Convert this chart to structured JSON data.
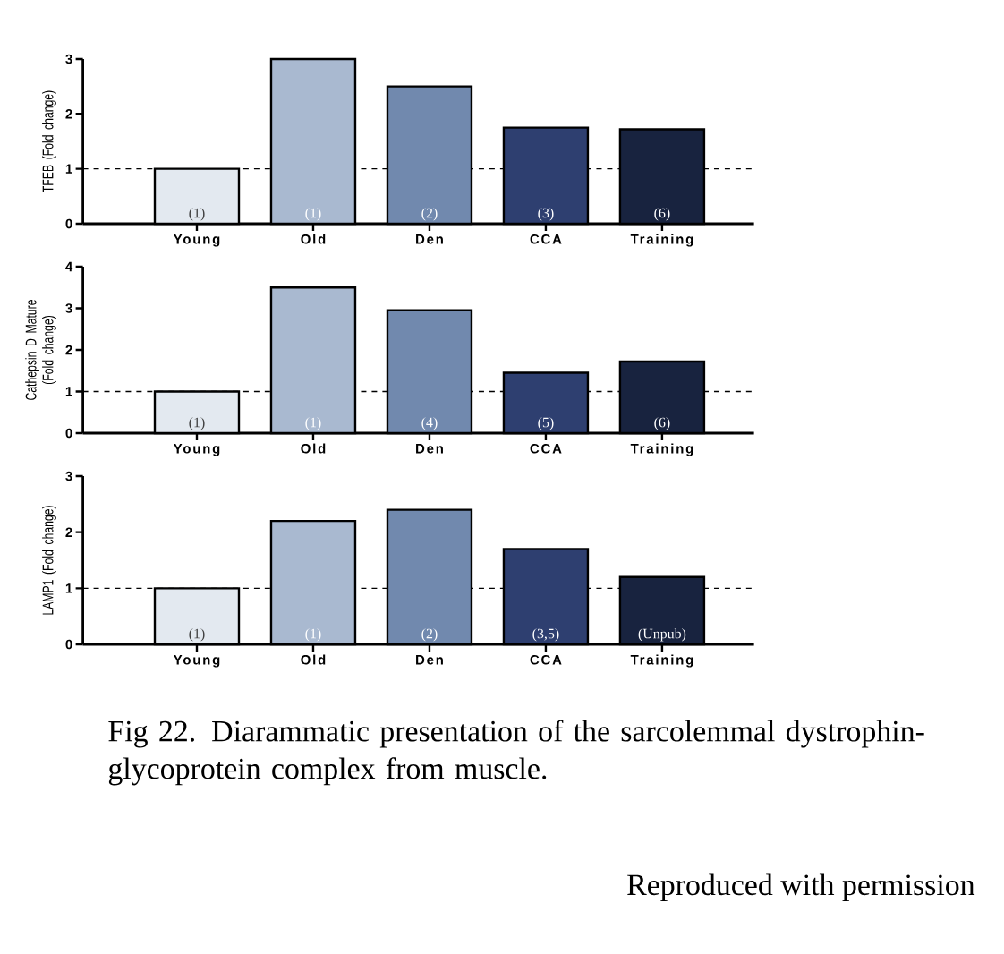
{
  "chart_data": [
    {
      "type": "bar",
      "ylabel": "TFEB (Fold change)",
      "categories": [
        "Young",
        "Old",
        "Den",
        "CCA",
        "Training"
      ],
      "values": [
        1,
        3,
        2.5,
        1.75,
        1.72
      ],
      "colors": [
        "#e3e9f0",
        "#a9b9d0",
        "#7189ae",
        "#2e3f70",
        "#18233f"
      ],
      "annotations": [
        {
          "text": "(1)",
          "x": "Young"
        },
        {
          "text": "(1)",
          "x": "Old"
        },
        {
          "text": "(2)",
          "x": "Den"
        },
        {
          "text": "(3)",
          "x": "CCA"
        },
        {
          "text": "(6)",
          "x": "Training"
        }
      ],
      "ylim": [
        0,
        3
      ],
      "yticks": [
        0,
        1,
        2,
        3
      ],
      "ref_lines": [
        {
          "axis": "y",
          "value": 1,
          "line_style": "dashed"
        }
      ]
    },
    {
      "type": "bar",
      "ylabel": "Cathepsin D Mature (Fold change)",
      "categories": [
        "Young",
        "Old",
        "Den",
        "CCA",
        "Training"
      ],
      "values": [
        1,
        3.5,
        2.95,
        1.45,
        1.72
      ],
      "colors": [
        "#e3e9f0",
        "#a9b9d0",
        "#7189ae",
        "#2e3f70",
        "#18233f"
      ],
      "annotations": [
        {
          "text": "(1)",
          "x": "Young"
        },
        {
          "text": "(1)",
          "x": "Old"
        },
        {
          "text": "(4)",
          "x": "Den"
        },
        {
          "text": "(5)",
          "x": "CCA"
        },
        {
          "text": "(6)",
          "x": "Training"
        }
      ],
      "ylim": [
        0,
        4
      ],
      "yticks": [
        0,
        1,
        2,
        3,
        4
      ],
      "ref_lines": [
        {
          "axis": "y",
          "value": 1,
          "line_style": "dashed"
        }
      ]
    },
    {
      "type": "bar",
      "ylabel": "LAMP1 (Fold change)",
      "categories": [
        "Young",
        "Old",
        "Den",
        "CCA",
        "Training"
      ],
      "values": [
        1,
        2.2,
        2.4,
        1.7,
        1.2
      ],
      "colors": [
        "#e3e9f0",
        "#a9b9d0",
        "#7189ae",
        "#2e3f70",
        "#18233f"
      ],
      "annotations": [
        {
          "text": "(1)",
          "x": "Young"
        },
        {
          "text": "(1)",
          "x": "Old"
        },
        {
          "text": "(2)",
          "x": "Den"
        },
        {
          "text": "(3,5)",
          "x": "CCA"
        },
        {
          "text": "(Unpub)",
          "x": "Training"
        }
      ],
      "ylim": [
        0,
        3
      ],
      "yticks": [
        0,
        1,
        2,
        3
      ],
      "ref_lines": [
        {
          "axis": "y",
          "value": 1,
          "line_style": "dashed"
        }
      ]
    },
    {
      "type": "other",
      "annotations": [
        "Fig 22. Diarammatic presentation of the sarcolemmal dystrophin-glycoprotein complex from muscle.",
        "Reproduced with permission"
      ]
    }
  ]
}
